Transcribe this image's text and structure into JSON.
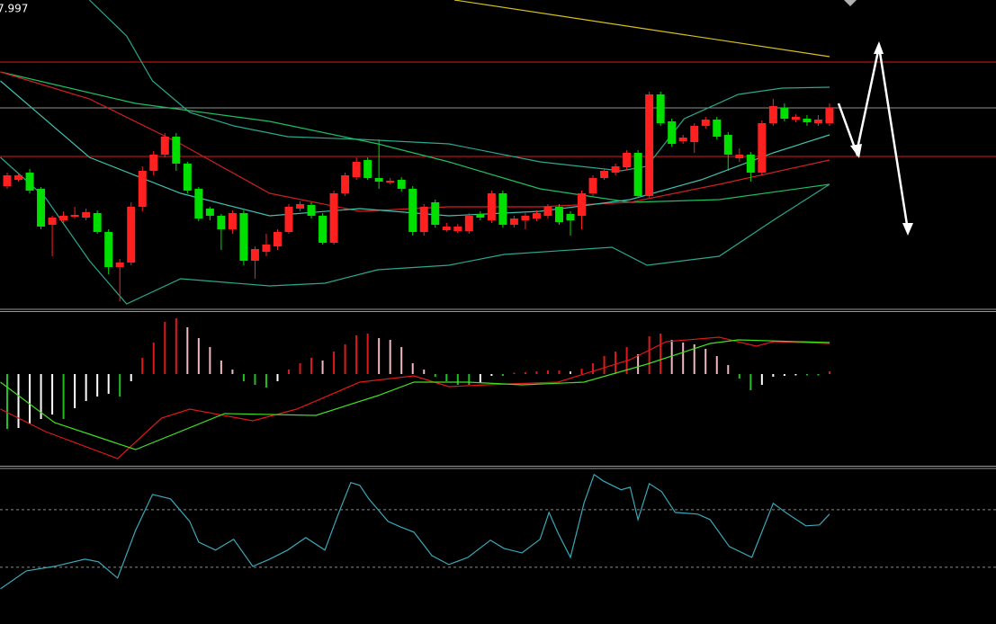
{
  "chart_data": [
    {
      "type": "candlestick",
      "price_label": "7.997",
      "ylim": [
        0,
        340
      ],
      "up_color": "#ff2020",
      "down_color": "#00e000",
      "ohlc": [
        [
          133,
          148,
          130,
          145
        ],
        [
          140,
          147,
          138,
          145
        ],
        [
          148,
          152,
          125,
          128
        ],
        [
          130,
          132,
          85,
          88
        ],
        [
          90,
          100,
          55,
          98
        ],
        [
          95,
          105,
          92,
          100
        ],
        [
          99,
          110,
          97,
          101
        ],
        [
          98,
          108,
          95,
          104
        ],
        [
          103,
          106,
          80,
          82
        ],
        [
          82,
          85,
          35,
          43
        ],
        [
          43,
          52,
          5,
          48
        ],
        [
          48,
          115,
          45,
          110
        ],
        [
          110,
          155,
          105,
          150
        ],
        [
          150,
          172,
          145,
          168
        ],
        [
          168,
          192,
          165,
          188
        ],
        [
          188,
          192,
          150,
          158
        ],
        [
          158,
          160,
          125,
          128
        ],
        [
          130,
          132,
          94,
          97
        ],
        [
          108,
          110,
          95,
          100
        ],
        [
          100,
          102,
          62,
          85
        ],
        [
          85,
          106,
          80,
          103
        ],
        [
          103,
          106,
          45,
          50
        ],
        [
          50,
          66,
          30,
          63
        ],
        [
          60,
          80,
          55,
          68
        ],
        [
          66,
          85,
          62,
          82
        ],
        [
          82,
          113,
          80,
          110
        ],
        [
          108,
          116,
          105,
          113
        ],
        [
          112,
          115,
          97,
          100
        ],
        [
          100,
          103,
          68,
          70
        ],
        [
          70,
          128,
          68,
          125
        ],
        [
          125,
          148,
          122,
          145
        ],
        [
          143,
          165,
          140,
          160
        ],
        [
          162,
          165,
          140,
          142
        ],
        [
          142,
          185,
          130,
          138
        ],
        [
          137,
          142,
          135,
          139
        ],
        [
          140,
          143,
          127,
          130
        ],
        [
          130,
          133,
          78,
          82
        ],
        [
          82,
          113,
          78,
          110
        ],
        [
          115,
          118,
          87,
          90
        ],
        [
          84,
          92,
          82,
          88
        ],
        [
          83,
          91,
          81,
          88
        ],
        [
          83,
          103,
          80,
          100
        ],
        [
          102,
          105,
          95,
          98
        ],
        [
          95,
          128,
          92,
          125
        ],
        [
          125,
          128,
          87,
          90
        ],
        [
          90,
          100,
          87,
          97
        ],
        [
          95,
          103,
          85,
          100
        ],
        [
          97,
          106,
          94,
          103
        ],
        [
          100,
          113,
          97,
          110
        ],
        [
          110,
          113,
          90,
          93
        ],
        [
          102,
          105,
          78,
          95
        ],
        [
          100,
          128,
          85,
          125
        ],
        [
          125,
          145,
          122,
          142
        ],
        [
          142,
          153,
          140,
          150
        ],
        [
          148,
          158,
          145,
          155
        ],
        [
          154,
          173,
          151,
          170
        ],
        [
          170,
          173,
          120,
          122
        ],
        [
          122,
          238,
          120,
          235
        ],
        [
          235,
          238,
          200,
          203
        ],
        [
          205,
          208,
          177,
          180
        ],
        [
          183,
          190,
          180,
          187
        ],
        [
          182,
          203,
          170,
          200
        ],
        [
          200,
          210,
          197,
          207
        ],
        [
          207,
          210,
          185,
          188
        ],
        [
          190,
          193,
          150,
          168
        ],
        [
          164,
          175,
          160,
          168
        ],
        [
          168,
          171,
          138,
          148
        ],
        [
          148,
          206,
          145,
          203
        ],
        [
          203,
          230,
          200,
          222
        ],
        [
          220,
          225,
          205,
          208
        ],
        [
          207,
          213,
          204,
          210
        ],
        [
          208,
          212,
          200,
          204
        ],
        [
          203,
          212,
          200,
          207
        ],
        [
          203,
          225,
          200,
          220
        ]
      ],
      "levels": [
        {
          "value": 271,
          "color": "#e01818"
        },
        {
          "value": 220,
          "color": "#909090"
        },
        {
          "value": 166,
          "color": "#e01818"
        }
      ],
      "series": [
        {
          "color": "#d8c020",
          "x": [
            39.7,
            73
          ],
          "values": [
            340,
            277
          ]
        },
        {
          "color": "#2aa890",
          "x": [
            7.3,
            10.6,
            12.9,
            16.2,
            20.1,
            24.9,
            31.3,
            39.2,
            47.3,
            54.5,
            56.8,
            60.1,
            64.9,
            68.8,
            73
          ],
          "values": [
            340,
            300,
            250,
            215,
            200,
            188,
            185,
            180,
            160,
            150,
            155,
            208,
            235,
            242,
            243
          ]
        },
        {
          "color": "#1ec060",
          "x": [
            -0.6,
            11.4,
            23.3,
            32.9,
            39.2,
            47.3,
            55.3,
            63.2,
            73
          ],
          "values": [
            260,
            225,
            205,
            180,
            160,
            130,
            115,
            118,
            135
          ]
        },
        {
          "color": "#2aa890",
          "x": [
            -0.6,
            3.4,
            7.3,
            10.6,
            15.4,
            23.3,
            28.2,
            32.9,
            39.2,
            44.1,
            53.7,
            56.8,
            63.2,
            68,
            73
          ],
          "values": [
            165,
            120,
            50,
            2,
            30,
            22,
            25,
            40,
            45,
            57,
            65,
            45,
            55,
            95,
            135
          ]
        },
        {
          "color": "#d02020",
          "x": [
            -0.6,
            7.3,
            15.4,
            23.3,
            31.3,
            39.2,
            47.3,
            55.3,
            63.2,
            73
          ],
          "values": [
            260,
            230,
            180,
            125,
            105,
            110,
            110,
            115,
            135,
            162
          ]
        },
        {
          "color": "#40c0b0",
          "x": [
            -0.6,
            7.3,
            15.4,
            23.3,
            31.3,
            39.2,
            47.3,
            55.3,
            61.6,
            68,
            73
          ],
          "values": [
            250,
            165,
            125,
            100,
            108,
            100,
            105,
            118,
            140,
            170,
            190
          ]
        }
      ]
    },
    {
      "type": "macd",
      "ylim": [
        -102,
        69
      ],
      "hist_colors": {
        "up_rising": "#e01818",
        "up_falling": "#f0b8c0",
        "down_falling": "#20c020",
        "down_rising": "#ffffff"
      },
      "histogram": [
        -61,
        -60,
        -55,
        -50,
        -45,
        -50,
        -38,
        -30,
        -25,
        -22,
        -25,
        -8,
        18,
        35,
        58,
        62,
        52,
        40,
        30,
        15,
        5,
        -8,
        -12,
        -15,
        -8,
        5,
        12,
        18,
        15,
        25,
        33,
        43,
        45,
        40,
        38,
        30,
        12,
        5,
        -3,
        -8,
        -12,
        -12,
        -10,
        -2,
        -2,
        0,
        2,
        3,
        4,
        4,
        3,
        6,
        12,
        20,
        25,
        30,
        22,
        42,
        45,
        38,
        35,
        33,
        28,
        20,
        10,
        -5,
        -18,
        -12,
        -3,
        -2,
        -1,
        -1,
        -1,
        3
      ],
      "series": [
        {
          "color": "#e01818",
          "x": [
            -0.6,
            3.4,
            9.8,
            13.7,
            16.2,
            21.8,
            25.7,
            31.3,
            36.1,
            39.2,
            42.5,
            48.9,
            55.3,
            58.5,
            63.2,
            66.5,
            68,
            73
          ],
          "values": [
            -39,
            -64,
            -94,
            -49,
            -39,
            -52,
            -39,
            -9,
            -2,
            -14,
            -12,
            -9,
            16,
            36,
            41,
            31,
            36,
            34
          ]
        },
        {
          "color": "#40e020",
          "x": [
            -0.6,
            4.2,
            11.4,
            19.3,
            27.4,
            32.9,
            36.1,
            40.9,
            45.7,
            51.2,
            56.8,
            62.4,
            64.9,
            73
          ],
          "values": [
            -9,
            -54,
            -84,
            -44,
            -46,
            -24,
            -9,
            -9,
            -12,
            -9,
            11,
            34,
            38,
            35
          ]
        }
      ]
    },
    {
      "type": "line",
      "ylim": [
        -9.4,
        98
      ],
      "levels": [
        30,
        70
      ],
      "series": [
        {
          "color": "#3aa8b8",
          "x": [
            -0.6,
            1.7,
            4.2,
            6.9,
            8.1,
            9.8,
            11.4,
            12.9,
            14.5,
            16.2,
            17,
            18.5,
            20.1,
            21.8,
            23.3,
            24.9,
            26.5,
            28.2,
            29.3,
            30.5,
            31.3,
            32.1,
            33.8,
            34.9,
            36.1,
            37.7,
            39.2,
            40.9,
            42.9,
            44.1,
            45.7,
            47.3,
            48.1,
            48.9,
            50,
            51.2,
            52.1,
            52.9,
            54.5,
            55.3,
            56,
            57,
            58.1,
            59.3,
            61.3,
            62.4,
            64.1,
            66.1,
            68,
            69.2,
            70.9,
            72.1,
            73
          ],
          "values": [
            15,
            27.5,
            30.6,
            35.6,
            33.8,
            22.5,
            55.6,
            80.6,
            77.5,
            61.9,
            47.5,
            41.9,
            49.4,
            30.6,
            35.6,
            41.9,
            50.6,
            41.9,
            65,
            88.8,
            86.9,
            77.5,
            61.9,
            58.1,
            54.4,
            38.1,
            31.9,
            36.9,
            48.8,
            43.1,
            40,
            49.4,
            68.1,
            53.8,
            36.9,
            74.4,
            94.4,
            90,
            83.8,
            85.6,
            63.1,
            88.1,
            82.5,
            68.1,
            66.9,
            63.1,
            44.4,
            36.9,
            74.4,
            67.5,
            58.8,
            59.4,
            66.9
          ]
        }
      ]
    }
  ]
}
